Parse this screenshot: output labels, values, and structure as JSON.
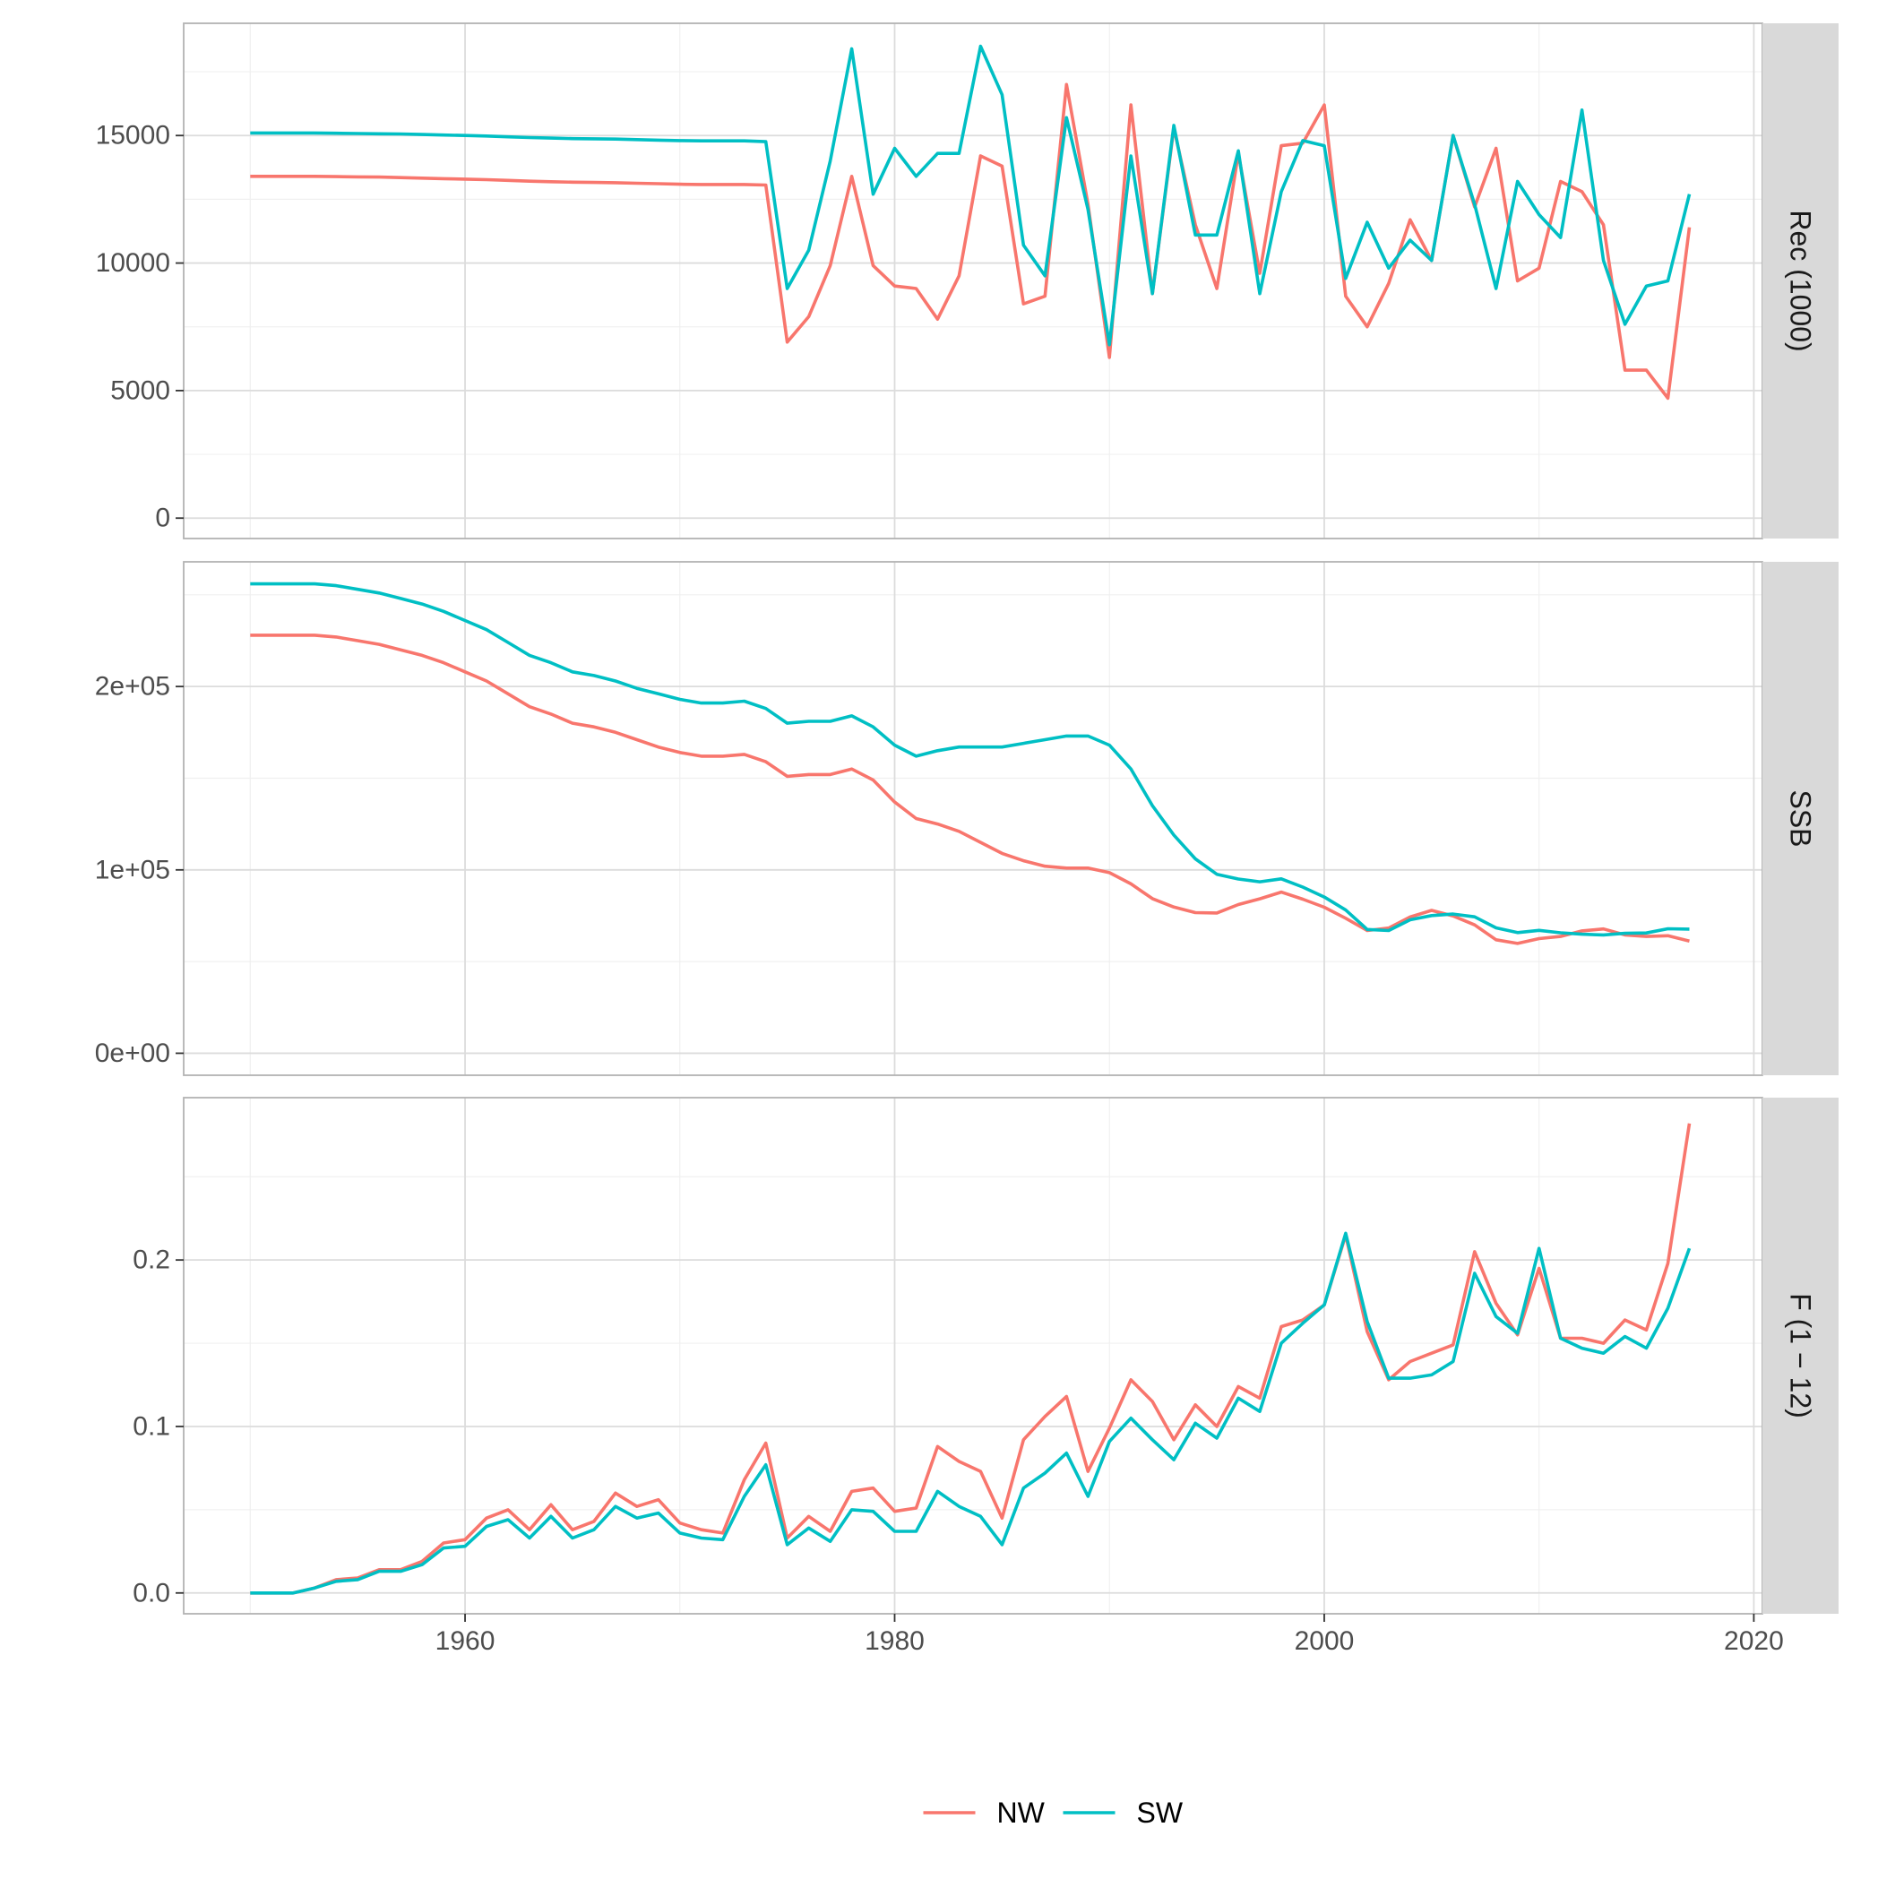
{
  "chart_data": {
    "type": "line",
    "facet_direction": "vertical",
    "grid": true,
    "legend_position": "bottom",
    "x_axis": {
      "range": [
        1946.9,
        2020.4
      ],
      "ticks": [
        1960,
        1980,
        2000,
        2020
      ],
      "tick_labels": [
        "1960",
        "1980",
        "2000",
        "2020"
      ]
    },
    "series_styles": [
      {
        "name": "NW",
        "color": "#F8766D"
      },
      {
        "name": "SW",
        "color": "#00BFC4"
      }
    ],
    "panels": [
      {
        "label": "Rec (1000)",
        "ylim": [
          -800,
          19400
        ],
        "y_ticks": [
          0,
          5000,
          10000,
          15000
        ],
        "y_tick_labels": [
          "0",
          "5000",
          "10000",
          "15000"
        ],
        "y_minor_ticks": [
          2500,
          7500,
          12500,
          17500
        ],
        "x": [
          1950,
          1951,
          1952,
          1953,
          1954,
          1955,
          1956,
          1957,
          1958,
          1959,
          1960,
          1961,
          1962,
          1963,
          1964,
          1965,
          1966,
          1967,
          1968,
          1969,
          1970,
          1971,
          1972,
          1973,
          1974,
          1975,
          1976,
          1977,
          1978,
          1979,
          1980,
          1981,
          1982,
          1983,
          1984,
          1985,
          1986,
          1987,
          1988,
          1989,
          1990,
          1991,
          1992,
          1993,
          1994,
          1995,
          1996,
          1997,
          1998,
          1999,
          2000,
          2001,
          2002,
          2003,
          2004,
          2005,
          2006,
          2007,
          2008,
          2009,
          2010,
          2011,
          2012,
          2013,
          2014,
          2015,
          2016,
          2017
        ],
        "series": [
          {
            "name": "NW",
            "values": [
              13400,
              13400,
              13400,
              13400,
              13390,
              13380,
              13370,
              13350,
              13330,
              13310,
              13290,
              13270,
              13240,
              13210,
              13190,
              13170,
              13160,
              13150,
              13130,
              13110,
              13090,
              13080,
              13080,
              13080,
              13060,
              6900,
              7900,
              9900,
              13400,
              9900,
              9100,
              9000,
              7800,
              9500,
              14200,
              13800,
              8400,
              8700,
              17000,
              12300,
              6300,
              16200,
              8800,
              15300,
              11500,
              9000,
              14300,
              9600,
              14600,
              14700,
              16200,
              8700,
              7500,
              9200,
              11700,
              10100,
              15000,
              12200,
              14500,
              9300,
              9800,
              13200,
              12800,
              11500,
              5800,
              5800,
              4700,
              11400
            ]
          },
          {
            "name": "SW",
            "values": [
              15100,
              15100,
              15100,
              15100,
              15090,
              15080,
              15070,
              15060,
              15040,
              15020,
              15000,
              14980,
              14950,
              14920,
              14900,
              14880,
              14870,
              14860,
              14840,
              14820,
              14800,
              14790,
              14790,
              14790,
              14760,
              9000,
              10500,
              14000,
              18400,
              12700,
              14500,
              13400,
              14300,
              14300,
              18500,
              16600,
              10700,
              9500,
              15700,
              12100,
              6800,
              14200,
              8800,
              15400,
              11100,
              11100,
              14400,
              8800,
              12800,
              14800,
              14600,
              9400,
              11600,
              9800,
              10900,
              10100,
              15000,
              12300,
              9000,
              13200,
              11900,
              11000,
              16000,
              10100,
              7600,
              9100,
              9300,
              12700
            ]
          }
        ]
      },
      {
        "label": "SSB",
        "ylim": [
          -12000,
          268000
        ],
        "y_ticks": [
          0,
          100000,
          200000
        ],
        "y_tick_labels": [
          "0e+00",
          "1e+05",
          "2e+05"
        ],
        "y_minor_ticks": [
          50000,
          150000,
          250000
        ],
        "x": [
          1950,
          1951,
          1952,
          1953,
          1954,
          1955,
          1956,
          1957,
          1958,
          1959,
          1960,
          1961,
          1962,
          1963,
          1964,
          1965,
          1966,
          1967,
          1968,
          1969,
          1970,
          1971,
          1972,
          1973,
          1974,
          1975,
          1976,
          1977,
          1978,
          1979,
          1980,
          1981,
          1982,
          1983,
          1984,
          1985,
          1986,
          1987,
          1988,
          1989,
          1990,
          1991,
          1992,
          1993,
          1994,
          1995,
          1996,
          1997,
          1998,
          1999,
          2000,
          2001,
          2002,
          2003,
          2004,
          2005,
          2006,
          2007,
          2008,
          2009,
          2010,
          2011,
          2012,
          2013,
          2014,
          2015,
          2016,
          2017
        ],
        "series": [
          {
            "name": "NW",
            "values": [
              228000,
              228000,
              228000,
              228000,
              227000,
              225000,
              223000,
              220000,
              217000,
              213000,
              208000,
              203000,
              196000,
              189000,
              185000,
              180000,
              178000,
              175000,
              171000,
              167000,
              164000,
              162000,
              162000,
              163000,
              159000,
              151000,
              152000,
              152000,
              155000,
              149000,
              137000,
              128000,
              125000,
              121000,
              115000,
              109000,
              105000,
              102000,
              101000,
              101000,
              98500,
              92400,
              84300,
              79700,
              76700,
              76500,
              81100,
              84200,
              87900,
              84000,
              79600,
              73600,
              66900,
              68300,
              74300,
              77900,
              74900,
              70000,
              61900,
              59900,
              62500,
              63700,
              66700,
              67800,
              64500,
              63700,
              64100,
              61200
            ]
          },
          {
            "name": "SW",
            "values": [
              256000,
              256000,
              256000,
              256000,
              255000,
              253000,
              251000,
              248000,
              245000,
              241000,
              236000,
              231000,
              224000,
              217000,
              213000,
              208000,
              206000,
              203000,
              199000,
              196000,
              193000,
              191000,
              191000,
              192000,
              188000,
              180000,
              181000,
              181000,
              184000,
              178000,
              168000,
              162000,
              165000,
              167000,
              167000,
              167000,
              169000,
              171000,
              173000,
              173000,
              168000,
              155000,
              135000,
              119000,
              106000,
              97600,
              95000,
              93500,
              95100,
              90600,
              85200,
              78100,
              67500,
              66900,
              72800,
              75100,
              75900,
              74400,
              68400,
              65800,
              67000,
              65700,
              64900,
              64500,
              65400,
              65600,
              67900,
              67700
            ]
          }
        ]
      },
      {
        "label": "F (1 − 12)",
        "ylim": [
          -0.0125,
          0.2975
        ],
        "y_ticks": [
          0.0,
          0.1,
          0.2
        ],
        "y_tick_labels": [
          "0.0",
          "0.1",
          "0.2"
        ],
        "y_minor_ticks": [
          0.05,
          0.15,
          0.25
        ],
        "x": [
          1950,
          1951,
          1952,
          1953,
          1954,
          1955,
          1956,
          1957,
          1958,
          1959,
          1960,
          1961,
          1962,
          1963,
          1964,
          1965,
          1966,
          1967,
          1968,
          1969,
          1970,
          1971,
          1972,
          1973,
          1974,
          1975,
          1976,
          1977,
          1978,
          1979,
          1980,
          1981,
          1982,
          1983,
          1984,
          1985,
          1986,
          1987,
          1988,
          1989,
          1990,
          1991,
          1992,
          1993,
          1994,
          1995,
          1996,
          1997,
          1998,
          1999,
          2000,
          2001,
          2002,
          2003,
          2004,
          2005,
          2006,
          2007,
          2008,
          2009,
          2010,
          2011,
          2012,
          2013,
          2014,
          2015,
          2016,
          2017
        ],
        "series": [
          {
            "name": "NW",
            "values": [
              0.0,
              0.0,
              0.0,
              0.003,
              0.008,
              0.009,
              0.014,
              0.014,
              0.019,
              0.03,
              0.032,
              0.045,
              0.05,
              0.038,
              0.053,
              0.038,
              0.043,
              0.06,
              0.052,
              0.056,
              0.042,
              0.038,
              0.036,
              0.068,
              0.09,
              0.033,
              0.046,
              0.037,
              0.061,
              0.063,
              0.049,
              0.051,
              0.088,
              0.079,
              0.073,
              0.045,
              0.092,
              0.106,
              0.118,
              0.073,
              0.099,
              0.128,
              0.115,
              0.092,
              0.113,
              0.1,
              0.124,
              0.117,
              0.16,
              0.164,
              0.173,
              0.215,
              0.157,
              0.128,
              0.139,
              0.144,
              0.149,
              0.205,
              0.174,
              0.155,
              0.195,
              0.153,
              0.153,
              0.15,
              0.164,
              0.158,
              0.198,
              0.282
            ]
          },
          {
            "name": "SW",
            "values": [
              0.0,
              0.0,
              0.0,
              0.003,
              0.007,
              0.008,
              0.013,
              0.013,
              0.017,
              0.027,
              0.028,
              0.04,
              0.044,
              0.033,
              0.046,
              0.033,
              0.038,
              0.052,
              0.045,
              0.048,
              0.036,
              0.033,
              0.032,
              0.058,
              0.077,
              0.029,
              0.039,
              0.031,
              0.05,
              0.049,
              0.037,
              0.037,
              0.061,
              0.052,
              0.046,
              0.029,
              0.063,
              0.072,
              0.084,
              0.058,
              0.091,
              0.105,
              0.092,
              0.08,
              0.102,
              0.093,
              0.117,
              0.109,
              0.15,
              0.162,
              0.173,
              0.216,
              0.163,
              0.129,
              0.129,
              0.131,
              0.139,
              0.192,
              0.166,
              0.156,
              0.207,
              0.153,
              0.147,
              0.144,
              0.154,
              0.147,
              0.171,
              0.207
            ]
          }
        ]
      }
    ],
    "legend": [
      {
        "name": "NW",
        "color": "#F8766D"
      },
      {
        "name": "SW",
        "color": "#00BFC4"
      }
    ]
  }
}
